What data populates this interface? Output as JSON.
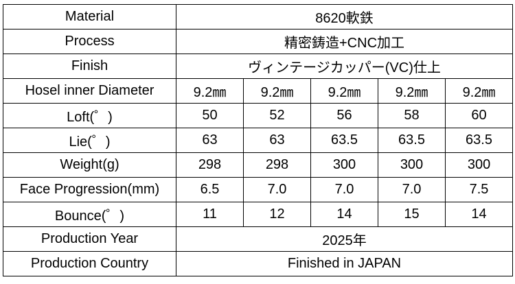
{
  "rows": [
    {
      "label": "Material",
      "merged": "8620軟鉄"
    },
    {
      "label": "Process",
      "merged": "精密鋳造+CNC加工"
    },
    {
      "label": "Finish",
      "merged": "ヴィンテージカッパー(VC)仕上"
    },
    {
      "label": "Hosel inner Diameter",
      "values": [
        "9.2㎜",
        "9.2㎜",
        "9.2㎜",
        "9.2㎜",
        "9.2㎜"
      ]
    },
    {
      "label": "Loft(゜)",
      "values": [
        "50",
        "52",
        "56",
        "58",
        "60"
      ]
    },
    {
      "label": "Lie(゜)",
      "values": [
        "63",
        "63",
        "63.5",
        "63.5",
        "63.5"
      ]
    },
    {
      "label": "Weight(g)",
      "values": [
        "298",
        "298",
        "300",
        "300",
        "300"
      ]
    },
    {
      "label": "Face Progression(mm)",
      "values": [
        "6.5",
        "7.0",
        "7.0",
        "7.0",
        "7.5"
      ]
    },
    {
      "label": "Bounce(゜)",
      "values": [
        "11",
        "12",
        "14",
        "15",
        "14"
      ]
    },
    {
      "label": "Production Year",
      "merged": "2025年"
    },
    {
      "label": "Production Country",
      "merged": "Finished in JAPAN"
    }
  ]
}
